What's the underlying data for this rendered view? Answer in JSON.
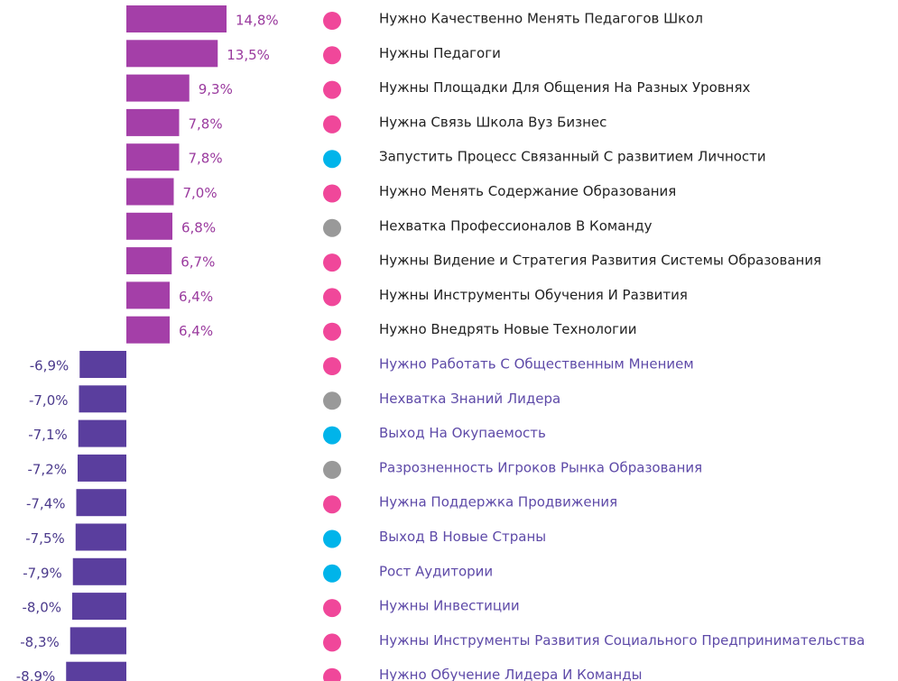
{
  "chart_data": {
    "type": "bar",
    "orientation": "horizontal",
    "categories": [
      "Нужно Качественно Менять Педагогов Школ",
      "Нужны Педагоги",
      "Нужны Площадки Для Общения На Разных Уровнях",
      "Нужна Связь Школа Вуз Бизнес",
      "Запустить Процесс Связанный С развитием Личности",
      "Нужно Менять Содержание Образования",
      "Нехватка Профессионалов В Команду",
      "Нужны Видение и Стратегия Развития Системы Образования",
      "Нужны Инструменты Обучения И Развития",
      "Нужно Внедрять Новые Технологии",
      "Нужно Работать С Общественным Мнением",
      "Нехватка Знаний Лидера",
      "Выход На Окупаемость",
      "Разрозненность Игроков Рынка Образования",
      "Нужна Поддержка Продвижения",
      "Выход В Новые Страны",
      "Рост Аудитории",
      "Нужны Инвестиции",
      "Нужны Инструменты Развития Социального Предпринимательства",
      "Нужно Обучение Лидера И Команды"
    ],
    "values": [
      14.8,
      13.5,
      9.3,
      7.8,
      7.8,
      7.0,
      6.8,
      6.7,
      6.4,
      6.4,
      -6.9,
      -7.0,
      -7.1,
      -7.2,
      -7.4,
      -7.5,
      -7.9,
      -8.0,
      -8.3,
      -8.9
    ],
    "value_labels": [
      "14,8%",
      "13,5%",
      "9,3%",
      "7,8%",
      "7,8%",
      "7,0%",
      "6,8%",
      "6,7%",
      "6,4%",
      "6,4%",
      "-6,9%",
      "-7,0%",
      "-7,1%",
      "-7,2%",
      "-7,4%",
      "-7,5%",
      "-7,9%",
      "-8,0%",
      "-8,3%",
      "-8,9%"
    ],
    "positive_color": "#a43fa8",
    "negative_color": "#5a3e9e",
    "dot_colors": [
      "#f0479a",
      "#f0479a",
      "#f0479a",
      "#f0479a",
      "#00b4ea",
      "#f0479a",
      "#999999",
      "#f0479a",
      "#f0479a",
      "#f0479a",
      "#f0479a",
      "#999999",
      "#00b4ea",
      "#999999",
      "#f0479a",
      "#00b4ea",
      "#00b4ea",
      "#f0479a",
      "#f0479a",
      "#f0479a"
    ]
  }
}
